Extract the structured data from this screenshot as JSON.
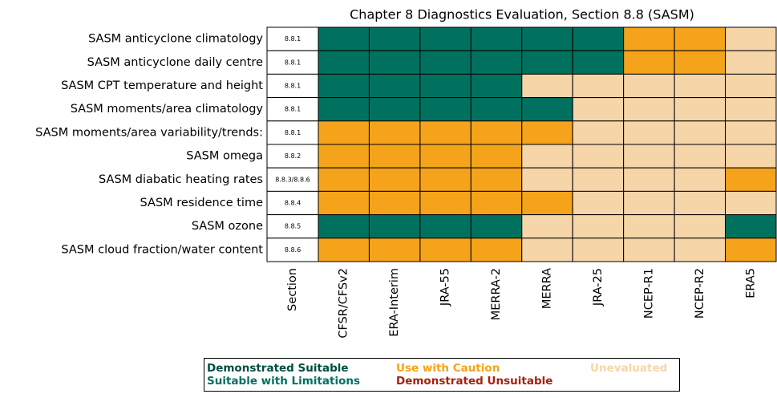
{
  "chart_data": {
    "type": "heatmap",
    "title": "Chapter 8 Diagnostics Evaluation, Section 8.8 (SASM)",
    "rows": [
      "SASM anticyclone climatology",
      "SASM anticyclone daily centre",
      "SASM CPT temperature and height",
      "SASM moments/area climatology ",
      "SASM moments/area variability/trends:",
      "SASM omega",
      "SASM diabatic heating rates",
      "SASM residence time",
      "SASM ozone",
      "SASM cloud fraction/water content"
    ],
    "section_label": "Section",
    "sections": [
      "8.8.1",
      "8.8.1",
      "8.8.1",
      "8.8.1",
      "8.8.1",
      "8.8.2",
      "8.8.3/8.8.6",
      "8.8.4",
      "8.8.5",
      "8.8.6"
    ],
    "columns": [
      "CFSR/CFSv2",
      "ERA-Interim",
      "JRA-55",
      "MERRA-2",
      "MERRA",
      "JRA-25",
      "NCEP-R1",
      "NCEP-R2",
      "ERA5"
    ],
    "legend": [
      {
        "name": "Demonstrated Suitable",
        "color": "#004d40"
      },
      {
        "name": "Suitable with Limitations",
        "color": "#00715f"
      },
      {
        "name": "Use with Caution",
        "color": "#f5a31a"
      },
      {
        "name": "Demonstrated Unsuitable",
        "color": "#a3230d"
      },
      {
        "name": "Unevaluated",
        "color": "#f6d5a8"
      }
    ],
    "legend_position": "bottom",
    "cells": [
      [
        1,
        1,
        1,
        1,
        1,
        1,
        2,
        2,
        4
      ],
      [
        1,
        1,
        1,
        1,
        1,
        1,
        2,
        2,
        4
      ],
      [
        1,
        1,
        1,
        1,
        4,
        4,
        4,
        4,
        4
      ],
      [
        1,
        1,
        1,
        1,
        1,
        4,
        4,
        4,
        4
      ],
      [
        2,
        2,
        2,
        2,
        2,
        4,
        4,
        4,
        4
      ],
      [
        2,
        2,
        2,
        2,
        4,
        4,
        4,
        4,
        4
      ],
      [
        2,
        2,
        2,
        2,
        4,
        4,
        4,
        4,
        2
      ],
      [
        2,
        2,
        2,
        2,
        2,
        4,
        4,
        4,
        4
      ],
      [
        1,
        1,
        1,
        1,
        4,
        4,
        4,
        4,
        1
      ],
      [
        2,
        2,
        2,
        2,
        4,
        4,
        4,
        4,
        2
      ]
    ]
  }
}
